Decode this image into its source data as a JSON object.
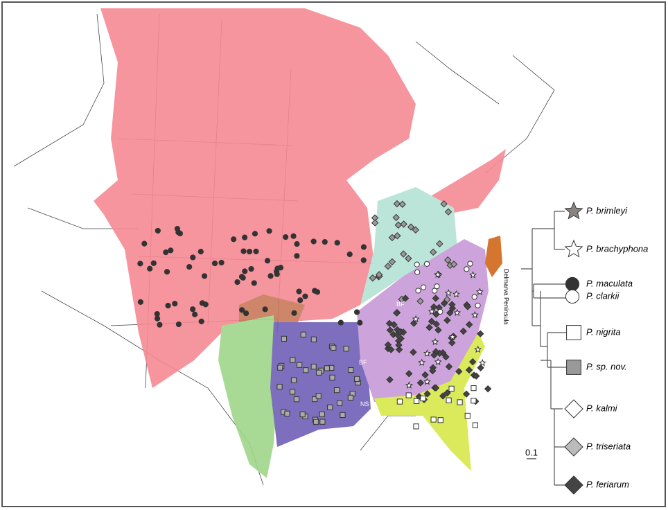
{
  "legend": {
    "entries": [
      "P. brimleyi",
      "P. brachyphona",
      "P. maculata",
      "P. clarkii",
      "P. nigrita",
      "P. sp. nov.",
      "P. kalmi",
      "P. triseriata",
      "P. feriarum"
    ],
    "scale": "0.1"
  },
  "map": {
    "labels": {
      "delmarva": "Delmarva Peninsula",
      "bf1": "BF",
      "bf2": "BF",
      "ns": "NS"
    }
  }
}
